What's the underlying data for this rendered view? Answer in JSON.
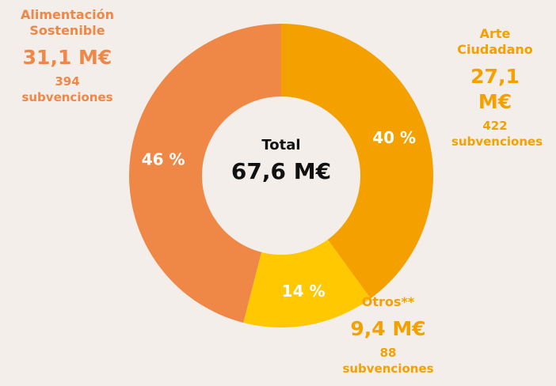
{
  "chart_data": {
    "type": "pie",
    "donut": true,
    "center_title": "Total",
    "center_value": "67,6 M€",
    "categories": [
      "Arte Ciudadano",
      "Otros**",
      "Alimentación Sostenible"
    ],
    "values": [
      40,
      14,
      46
    ],
    "value_labels": [
      "40 %",
      "14 %",
      "46 %"
    ],
    "colors": [
      "#f4a100",
      "#ffc800",
      "#ef8747"
    ],
    "amount_labels": [
      "27,1 M€",
      "9,4 M€",
      "31,1 M€"
    ],
    "counts": [
      422,
      88,
      394
    ],
    "count_unit": "subvenciones"
  }
}
